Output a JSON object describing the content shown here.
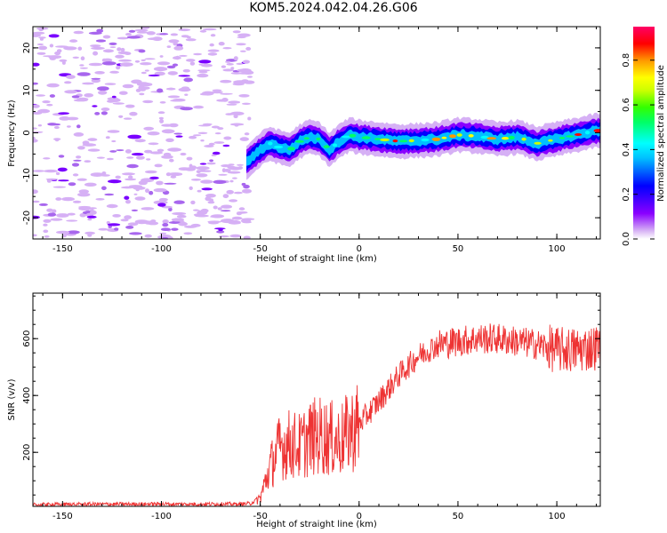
{
  "title": "KOM5.2024.042.04.26.G06",
  "chart_data": [
    {
      "type": "heatmap",
      "xlabel": "Height of straight line (km)",
      "ylabel": "Frequency (Hz)",
      "xlim": [
        -165,
        122
      ],
      "ylim": [
        -25,
        25
      ],
      "x_ticks": [
        -150,
        -100,
        -50,
        0,
        50,
        100
      ],
      "y_ticks": [
        -20,
        -10,
        0,
        10,
        20
      ],
      "colorbar": {
        "label": "Normalized spectral amplitude",
        "range": [
          0,
          0.95
        ],
        "ticks": [
          0.0,
          0.2,
          0.4,
          0.6,
          0.8
        ]
      },
      "ridge": {
        "x": [
          -57,
          -50,
          -45,
          -40,
          -35,
          -30,
          -25,
          -20,
          -15,
          -10,
          -5,
          0,
          10,
          20,
          30,
          40,
          50,
          60,
          70,
          80,
          90,
          100,
          110,
          120
        ],
        "y": [
          -7,
          -4,
          -2.5,
          -3.5,
          -4,
          -2,
          -1,
          -1.5,
          -4,
          -2,
          -0.5,
          -1,
          -1.5,
          -2,
          -1.8,
          -1.5,
          -0.5,
          -0.8,
          -1.5,
          -1,
          -2.5,
          -1.5,
          -0.5,
          0.5
        ]
      }
    },
    {
      "type": "line",
      "xlabel": "Height of straight line (km)",
      "ylabel": "SNR (v/v)",
      "xlim": [
        -165,
        122
      ],
      "ylim": [
        10,
        760
      ],
      "x_ticks": [
        -150,
        -100,
        -50,
        0,
        50,
        100
      ],
      "y_ticks": [
        200,
        400,
        600
      ],
      "line_color": "#ee3333",
      "series": [
        {
          "x": [
            -165,
            -150,
            -100,
            -60,
            -55,
            -50,
            -45,
            -40,
            -35,
            -30,
            -25,
            -20,
            -15,
            -10,
            -5,
            0,
            10,
            20,
            30,
            40,
            50,
            60,
            70,
            80,
            90,
            100,
            110,
            120
          ],
          "y": [
            15,
            17,
            18,
            18,
            20,
            40,
            150,
            220,
            230,
            220,
            250,
            260,
            250,
            240,
            270,
            300,
            380,
            470,
            540,
            580,
            590,
            600,
            600,
            590,
            580,
            560,
            560,
            570
          ]
        }
      ]
    }
  ]
}
